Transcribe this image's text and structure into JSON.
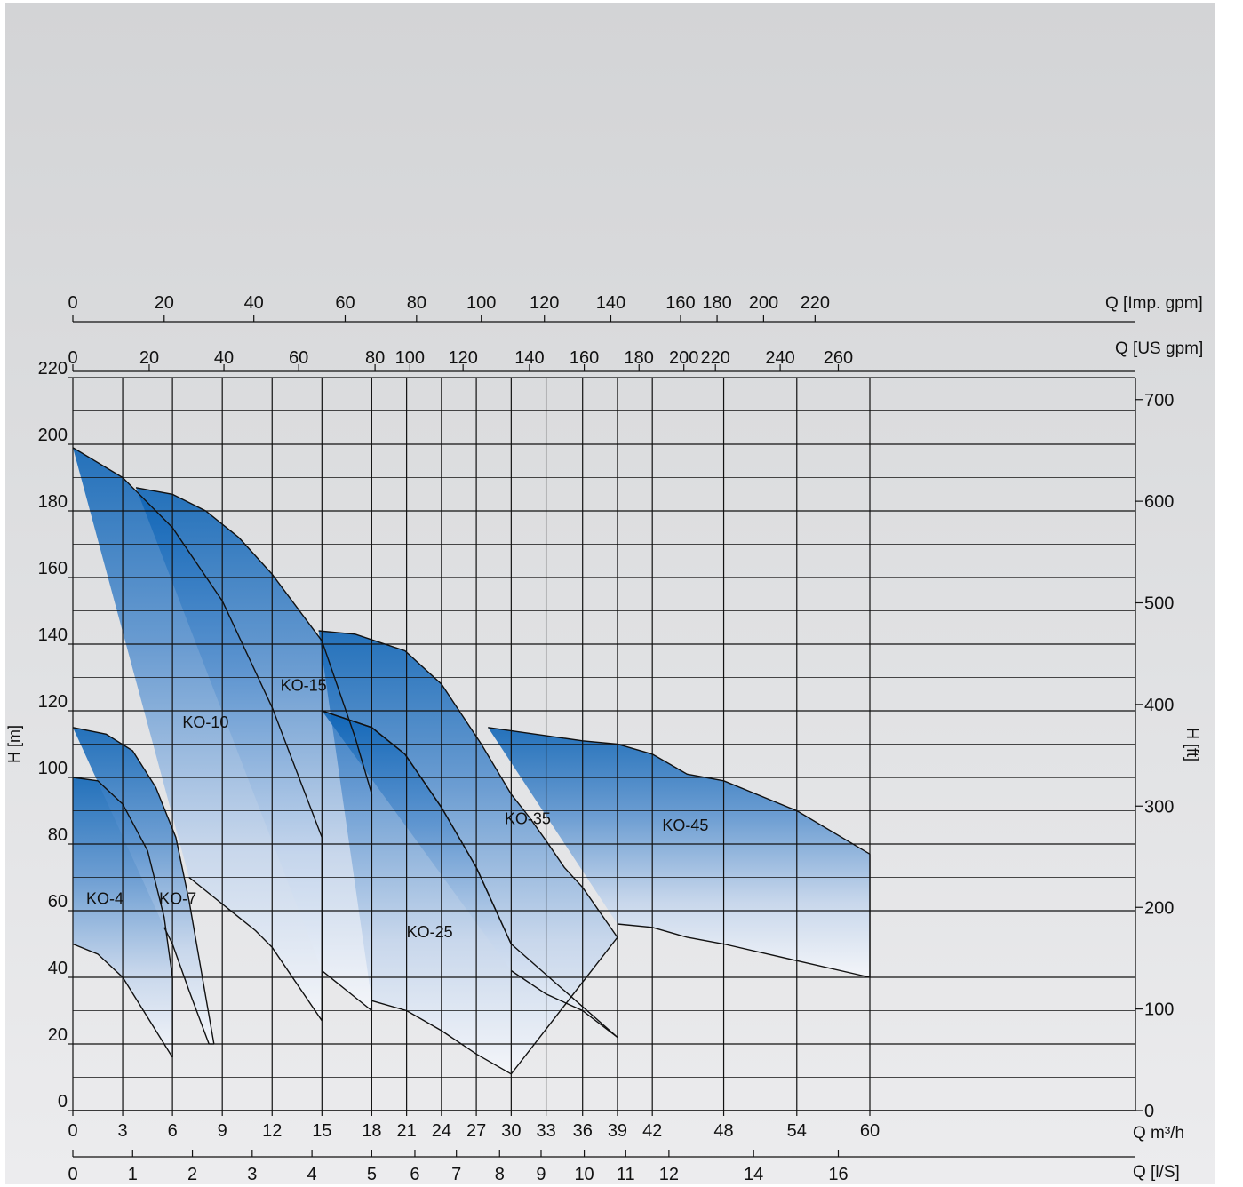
{
  "chart_data": {
    "type": "area",
    "xlabel": "Q m³/h",
    "ylabel": "H [m]",
    "ylabel_right": "H [ft]",
    "xlim": [
      0,
      64
    ],
    "ylim": [
      0,
      220
    ],
    "grid": true,
    "x_ticks": [
      {
        "v": 0,
        "label": "0"
      },
      {
        "v": 3,
        "label": "3"
      },
      {
        "v": 6,
        "label": "6"
      },
      {
        "v": 9,
        "label": "9"
      },
      {
        "v": 12,
        "label": "12"
      },
      {
        "v": 15,
        "label": "15"
      },
      {
        "v": 18,
        "label": "18"
      },
      {
        "v": 20.1,
        "label": "21"
      },
      {
        "v": 22.2,
        "label": "24"
      },
      {
        "v": 24.3,
        "label": "27"
      },
      {
        "v": 26.4,
        "label": "30"
      },
      {
        "v": 28.5,
        "label": "33"
      },
      {
        "v": 30.7,
        "label": "36"
      },
      {
        "v": 32.8,
        "label": "39"
      },
      {
        "v": 34.9,
        "label": "42"
      },
      {
        "v": 39.2,
        "label": "48"
      },
      {
        "v": 43.6,
        "label": "54"
      },
      {
        "v": 48,
        "label": "60"
      }
    ],
    "y_ticks": [
      "0",
      "20",
      "40",
      "60",
      "80",
      "100",
      "120",
      "140",
      "160",
      "180",
      "200",
      "220"
    ],
    "axis_ls": {
      "label": "Q [l/S]",
      "ticks": [
        {
          "v": 0,
          "label": "0"
        },
        {
          "v": 3.6,
          "label": "1"
        },
        {
          "v": 7.2,
          "label": "2"
        },
        {
          "v": 10.8,
          "label": "3"
        },
        {
          "v": 14.4,
          "label": "4"
        },
        {
          "v": 18,
          "label": "5"
        },
        {
          "v": 20.6,
          "label": "6"
        },
        {
          "v": 23.1,
          "label": "7"
        },
        {
          "v": 25.7,
          "label": "8"
        },
        {
          "v": 28.2,
          "label": "9"
        },
        {
          "v": 30.8,
          "label": "10"
        },
        {
          "v": 33.3,
          "label": "11"
        },
        {
          "v": 35.9,
          "label": "12"
        },
        {
          "v": 41,
          "label": "14"
        },
        {
          "v": 46.1,
          "label": "16"
        }
      ]
    },
    "axis_us": {
      "label": "Q [US gpm]",
      "ticks": [
        {
          "v": 0,
          "label": "0"
        },
        {
          "v": 4.6,
          "label": "20"
        },
        {
          "v": 9.1,
          "label": "40"
        },
        {
          "v": 13.6,
          "label": "60"
        },
        {
          "v": 18.2,
          "label": "80"
        },
        {
          "v": 20.3,
          "label": "100"
        },
        {
          "v": 23.5,
          "label": "120"
        },
        {
          "v": 27.5,
          "label": "140"
        },
        {
          "v": 30.8,
          "label": "160"
        },
        {
          "v": 34.1,
          "label": "180"
        },
        {
          "v": 36.8,
          "label": "200"
        },
        {
          "v": 38.7,
          "label": "220"
        },
        {
          "v": 42.6,
          "label": "240"
        },
        {
          "v": 46.1,
          "label": "260"
        }
      ]
    },
    "axis_imp": {
      "label": "Q [Imp. gpm]",
      "ticks": [
        {
          "v": 0,
          "label": "0"
        },
        {
          "v": 5.5,
          "label": "20"
        },
        {
          "v": 10.9,
          "label": "40"
        },
        {
          "v": 16.4,
          "label": "60"
        },
        {
          "v": 20.7,
          "label": "80"
        },
        {
          "v": 24.6,
          "label": "100"
        },
        {
          "v": 28.4,
          "label": "120"
        },
        {
          "v": 32.4,
          "label": "140"
        },
        {
          "v": 36.6,
          "label": "160"
        },
        {
          "v": 38.8,
          "label": "180"
        },
        {
          "v": 41.6,
          "label": "200"
        },
        {
          "v": 44.7,
          "label": "220"
        }
      ]
    },
    "right_ticks": [
      {
        "v": 0,
        "label": "0"
      },
      {
        "v": 30.5,
        "label": "100"
      },
      {
        "v": 61,
        "label": "200"
      },
      {
        "v": 91.4,
        "label": "300"
      },
      {
        "v": 121.9,
        "label": "400"
      },
      {
        "v": 152.4,
        "label": "500"
      },
      {
        "v": 182.9,
        "label": "600"
      },
      {
        "v": 213.4,
        "label": "700"
      }
    ],
    "series": [
      {
        "name": "KO-4",
        "label_at": [
          0.8,
          62
        ],
        "color": "#0a5fb0",
        "max": [
          [
            0,
            100
          ],
          [
            1.5,
            99
          ],
          [
            3,
            92
          ],
          [
            4.5,
            78
          ],
          [
            5.5,
            58
          ],
          [
            6,
            40
          ]
        ],
        "min": [
          [
            0,
            50
          ],
          [
            1.5,
            47
          ],
          [
            3,
            40
          ],
          [
            4.5,
            28
          ],
          [
            6,
            16
          ]
        ]
      },
      {
        "name": "KO-7",
        "label_at": [
          5.2,
          62
        ],
        "color": "#1460b0",
        "max": [
          [
            0,
            115
          ],
          [
            2,
            113
          ],
          [
            3.6,
            108
          ],
          [
            5,
            97
          ],
          [
            6.2,
            82
          ],
          [
            7,
            63
          ],
          [
            8.5,
            20
          ]
        ],
        "min": [
          [
            5.5,
            55
          ],
          [
            6,
            50
          ],
          [
            7,
            36
          ],
          [
            8.2,
            20
          ]
        ]
      },
      {
        "name": "KO-10",
        "label_at": [
          6.6,
          115
        ],
        "color": "#0a6cb8",
        "max": [
          [
            0,
            199
          ],
          [
            3,
            190
          ],
          [
            6,
            175
          ],
          [
            9,
            153
          ],
          [
            12,
            121
          ],
          [
            15,
            82
          ]
        ],
        "min": [
          [
            7,
            70
          ],
          [
            9,
            62
          ],
          [
            11,
            54
          ],
          [
            12,
            49
          ],
          [
            15,
            27
          ]
        ]
      },
      {
        "name": "KO-15",
        "label_at": [
          12.5,
          126
        ],
        "color": "#1458ad",
        "max": [
          [
            3.8,
            187
          ],
          [
            6,
            185
          ],
          [
            8,
            180
          ],
          [
            10,
            172
          ],
          [
            12,
            161
          ],
          [
            15,
            141
          ],
          [
            17,
            112
          ],
          [
            18,
            95
          ]
        ],
        "min": [
          [
            15,
            42
          ],
          [
            18,
            30
          ]
        ]
      },
      {
        "name": "KO-25",
        "label_at": [
          20.1,
          52
        ],
        "color": "#1c5eae",
        "max": [
          [
            14.8,
            144
          ],
          [
            17,
            143
          ],
          [
            20,
            138
          ],
          [
            22.2,
            128
          ],
          [
            24.6,
            110
          ],
          [
            26.4,
            95
          ],
          [
            27.5,
            88
          ],
          [
            28.5,
            81
          ],
          [
            29.6,
            73
          ],
          [
            30.7,
            67
          ],
          [
            32.8,
            52
          ]
        ],
        "min": [
          [
            15,
            120
          ],
          [
            18,
            115
          ],
          [
            20,
            107
          ],
          [
            22.2,
            91
          ],
          [
            24.3,
            73
          ],
          [
            26.4,
            50
          ]
        ],
        "base": [
          [
            18,
            33
          ],
          [
            20.1,
            30
          ],
          [
            22.2,
            24
          ],
          [
            24.3,
            17
          ],
          [
            26.4,
            11
          ]
        ]
      },
      {
        "name": "KO-35",
        "label_at": [
          26,
          86
        ],
        "color": "#1b5aab",
        "max": [
          [
            15,
            120
          ],
          [
            18,
            115
          ],
          [
            20,
            107
          ],
          [
            22.2,
            91
          ],
          [
            24.3,
            73
          ],
          [
            26.4,
            50
          ]
        ],
        "min": [
          [
            26.4,
            42
          ],
          [
            28.5,
            35
          ],
          [
            30.7,
            30
          ],
          [
            32.8,
            22
          ]
        ]
      },
      {
        "name": "KO-45",
        "label_at": [
          35.5,
          84
        ],
        "color": "#0a6cb8",
        "max": [
          [
            25,
            115
          ],
          [
            30.7,
            111
          ],
          [
            32.8,
            110
          ],
          [
            34.9,
            107
          ],
          [
            37,
            101
          ],
          [
            39.2,
            99
          ],
          [
            43.6,
            90
          ],
          [
            48,
            77
          ]
        ],
        "min": [
          [
            32.8,
            56
          ],
          [
            34.9,
            55
          ],
          [
            37,
            52
          ],
          [
            39.2,
            50
          ],
          [
            43.6,
            45
          ],
          [
            48,
            40
          ]
        ]
      }
    ]
  }
}
